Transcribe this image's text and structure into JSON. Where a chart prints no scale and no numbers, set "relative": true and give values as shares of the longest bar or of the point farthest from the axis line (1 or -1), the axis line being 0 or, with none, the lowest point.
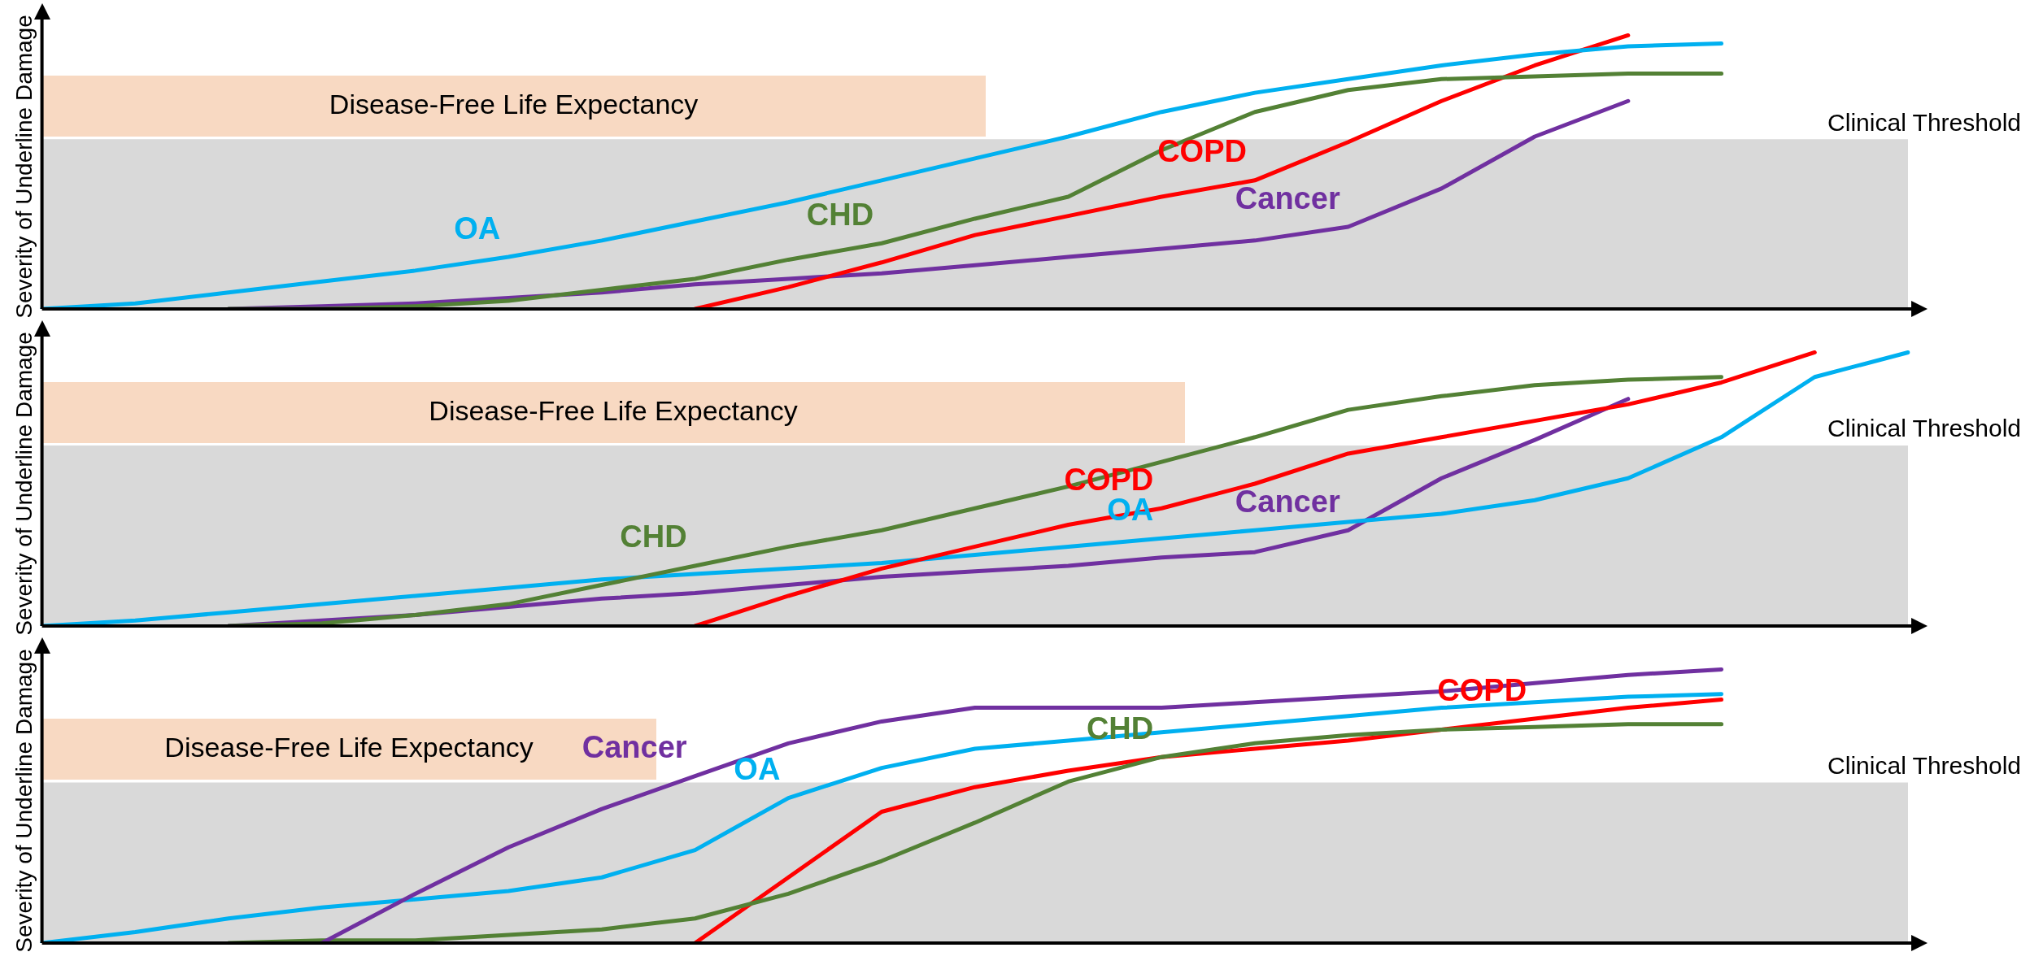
{
  "chart_data": [
    {
      "type": "line",
      "ylabel": "Severity of Underline Damage",
      "relative": true,
      "tick_labels": false,
      "legend": false,
      "grid": false,
      "marker": "none",
      "line_style": "solid",
      "categories": [
        null,
        null,
        null,
        null,
        null,
        null,
        null,
        null,
        null,
        null,
        null,
        null,
        null,
        null,
        null,
        null,
        null,
        null,
        null,
        null,
        null
      ],
      "annotations": [
        "Disease-Free Life Expectancy"
      ],
      "bands": [
        {
          "axis": "y",
          "from": 0,
          "to": 0.62,
          "label": "Clinical Threshold",
          "color": "#d9d9d9"
        }
      ],
      "series": [
        {
          "name": "OA",
          "color": "#00b0f0",
          "values": [
            0,
            0.02,
            0.06,
            0.1,
            0.14,
            0.19,
            0.25,
            0.32,
            0.39,
            0.47,
            0.55,
            0.63,
            0.72,
            0.79,
            0.84,
            0.89,
            0.93,
            0.96,
            0.97,
            null,
            null
          ]
        },
        {
          "name": "CHD",
          "color": "#538135",
          "values": [
            null,
            null,
            0,
            0,
            0.01,
            0.03,
            0.07,
            0.11,
            0.18,
            0.24,
            0.33,
            0.41,
            0.58,
            0.72,
            0.8,
            0.84,
            0.85,
            0.86,
            0.86,
            null,
            null
          ]
        },
        {
          "name": "COPD",
          "color": "#ff0000",
          "values": [
            null,
            null,
            null,
            null,
            null,
            null,
            null,
            0,
            0.08,
            0.17,
            0.27,
            0.34,
            0.41,
            0.47,
            0.61,
            0.76,
            0.89,
            1,
            null,
            null,
            null
          ]
        },
        {
          "name": "Cancer",
          "color": "#7030a0",
          "values": [
            null,
            null,
            0,
            0.01,
            0.02,
            0.04,
            0.06,
            0.09,
            0.11,
            0.13,
            0.16,
            0.19,
            0.22,
            0.25,
            0.3,
            0.44,
            0.63,
            0.76,
            null,
            null,
            null
          ]
        }
      ]
    },
    {
      "type": "line",
      "ylabel": "Severity of Underline Damage",
      "relative": true,
      "tick_labels": false,
      "legend": false,
      "grid": false,
      "marker": "none",
      "line_style": "solid",
      "categories": [
        null,
        null,
        null,
        null,
        null,
        null,
        null,
        null,
        null,
        null,
        null,
        null,
        null,
        null,
        null,
        null,
        null,
        null,
        null,
        null,
        null
      ],
      "annotations": [
        "Disease-Free Life Expectancy"
      ],
      "bands": [
        {
          "axis": "y",
          "from": 0,
          "to": 0.66,
          "label": "Clinical Threshold",
          "color": "#d9d9d9"
        }
      ],
      "series": [
        {
          "name": "CHD",
          "color": "#538135",
          "values": [
            null,
            null,
            0,
            0.01,
            0.04,
            0.08,
            0.15,
            0.22,
            0.29,
            0.35,
            0.43,
            0.51,
            0.6,
            0.69,
            0.79,
            0.84,
            0.88,
            0.9,
            0.91,
            null,
            null
          ]
        },
        {
          "name": "COPD",
          "color": "#ff0000",
          "values": [
            null,
            null,
            null,
            null,
            null,
            null,
            null,
            0,
            0.11,
            0.21,
            0.29,
            0.37,
            0.43,
            0.52,
            0.63,
            0.69,
            0.75,
            0.81,
            0.89,
            1,
            null
          ]
        },
        {
          "name": "OA",
          "color": "#00b0f0",
          "values": [
            0,
            0.02,
            0.05,
            0.08,
            0.11,
            0.14,
            0.17,
            0.19,
            0.21,
            0.23,
            0.26,
            0.29,
            0.32,
            0.35,
            0.38,
            0.41,
            0.46,
            0.54,
            0.69,
            0.91,
            1
          ]
        },
        {
          "name": "Cancer",
          "color": "#7030a0",
          "values": [
            null,
            null,
            0,
            0.02,
            0.04,
            0.07,
            0.1,
            0.12,
            0.15,
            0.18,
            0.2,
            0.22,
            0.25,
            0.27,
            0.35,
            0.54,
            0.68,
            0.83,
            null,
            null,
            null
          ]
        }
      ]
    },
    {
      "type": "line",
      "ylabel": "Severity of Underline Damage",
      "relative": true,
      "tick_labels": false,
      "legend": false,
      "grid": false,
      "marker": "none",
      "line_style": "solid",
      "categories": [
        null,
        null,
        null,
        null,
        null,
        null,
        null,
        null,
        null,
        null,
        null,
        null,
        null,
        null,
        null,
        null,
        null,
        null,
        null,
        null,
        null
      ],
      "annotations": [
        "Disease-Free Life Expectancy"
      ],
      "bands": [
        {
          "axis": "y",
          "from": 0,
          "to": 0.587,
          "label": "Clinical Threshold",
          "color": "#d9d9d9"
        }
      ],
      "series": [
        {
          "name": "Cancer",
          "color": "#7030a0",
          "values": [
            null,
            null,
            null,
            0,
            0.18,
            0.35,
            0.49,
            0.61,
            0.73,
            0.81,
            0.86,
            0.86,
            0.86,
            0.88,
            0.9,
            0.92,
            0.95,
            0.98,
            1,
            null,
            null
          ]
        },
        {
          "name": "OA",
          "color": "#00b0f0",
          "values": [
            0,
            0.04,
            0.09,
            0.13,
            0.16,
            0.19,
            0.24,
            0.34,
            0.53,
            0.64,
            0.71,
            0.74,
            0.77,
            0.8,
            0.83,
            0.86,
            0.88,
            0.9,
            0.91,
            null,
            null
          ]
        },
        {
          "name": "CHD",
          "color": "#538135",
          "values": [
            null,
            null,
            0,
            0.01,
            0.01,
            0.03,
            0.05,
            0.09,
            0.18,
            0.3,
            0.44,
            0.59,
            0.68,
            0.73,
            0.76,
            0.78,
            0.79,
            0.8,
            0.8,
            null,
            null
          ]
        },
        {
          "name": "COPD",
          "color": "#ff0000",
          "values": [
            null,
            null,
            null,
            null,
            null,
            null,
            null,
            0,
            0.24,
            0.48,
            0.57,
            0.63,
            0.68,
            0.71,
            0.74,
            0.78,
            0.82,
            0.86,
            0.89,
            null,
            null
          ]
        }
      ]
    }
  ]
}
